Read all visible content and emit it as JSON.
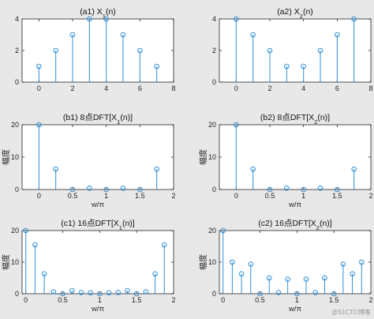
{
  "colors": {
    "stem": "#2f8fd8",
    "axes_bg": "#ffffff",
    "figure_bg": "#e8e8e8",
    "axis": "#262626"
  },
  "watermark": "@51CTO博客",
  "chart_data": [
    {
      "type": "stem",
      "title": "(a1)  X1(n)",
      "xlabel": "",
      "ylabel": "",
      "x": [
        0,
        1,
        2,
        3,
        4,
        5,
        6,
        7
      ],
      "values": [
        1,
        2,
        3,
        4,
        4,
        3,
        2,
        1
      ],
      "xlim": [
        -1,
        8
      ],
      "ylim": [
        0,
        4
      ],
      "xticks": [
        0,
        2,
        4,
        6,
        8
      ],
      "yticks": [
        0,
        2,
        4
      ],
      "grid": false
    },
    {
      "type": "stem",
      "title": "(a2)  X2(n)",
      "xlabel": "",
      "ylabel": "",
      "x": [
        0,
        1,
        2,
        3,
        4,
        5,
        6,
        7
      ],
      "values": [
        4,
        3,
        2,
        1,
        1,
        2,
        3,
        4
      ],
      "xlim": [
        -1,
        8
      ],
      "ylim": [
        0,
        4
      ],
      "xticks": [
        0,
        2,
        4,
        6,
        8
      ],
      "yticks": [
        0,
        2,
        4
      ],
      "grid": false
    },
    {
      "type": "stem",
      "title": "(b1)  8点DFT[X1(n)]",
      "xlabel": "w/π",
      "ylabel": "幅度",
      "x": [
        0,
        0.25,
        0.5,
        0.75,
        1,
        1.25,
        1.5,
        1.75
      ],
      "values": [
        20,
        6.3,
        0,
        0.4,
        0,
        0.4,
        0,
        6.3
      ],
      "xlim": [
        -0.25,
        2
      ],
      "ylim": [
        0,
        20
      ],
      "xticks": [
        0,
        0.5,
        1,
        1.5,
        2
      ],
      "yticks": [
        0,
        10,
        20
      ],
      "grid": false
    },
    {
      "type": "stem",
      "title": "(b2)  8点DFT[X2(n)]",
      "xlabel": "w/π",
      "ylabel": "幅度",
      "x": [
        0,
        0.25,
        0.5,
        0.75,
        1,
        1.25,
        1.5,
        1.75
      ],
      "values": [
        20,
        6.3,
        0,
        0.4,
        0,
        0.4,
        0,
        6.3
      ],
      "xlim": [
        -0.25,
        2
      ],
      "ylim": [
        0,
        20
      ],
      "xticks": [
        0,
        0.5,
        1,
        1.5,
        2
      ],
      "yticks": [
        0,
        10,
        20
      ],
      "grid": false
    },
    {
      "type": "stem",
      "title": "(c1)  16点DFT[X1(n)]",
      "xlabel": "w/π",
      "ylabel": "幅度",
      "x": [
        0,
        0.125,
        0.25,
        0.375,
        0.5,
        0.625,
        0.75,
        0.875,
        1,
        1.125,
        1.25,
        1.375,
        1.5,
        1.625,
        1.75,
        1.875
      ],
      "values": [
        20,
        15.5,
        6.3,
        0.6,
        0,
        1,
        0.4,
        0.3,
        0,
        0.3,
        0.4,
        1,
        0,
        0.6,
        6.3,
        15.5
      ],
      "xlim": [
        -0.05,
        2
      ],
      "ylim": [
        0,
        20
      ],
      "xticks": [
        0,
        0.5,
        1,
        1.5,
        2
      ],
      "yticks": [
        0,
        10,
        20
      ],
      "grid": false
    },
    {
      "type": "stem",
      "title": "(c2)  16点DFT[X2(n)]",
      "xlabel": "w/π",
      "ylabel": "幅度",
      "x": [
        0,
        0.125,
        0.25,
        0.375,
        0.5,
        0.625,
        0.75,
        0.875,
        1,
        1.125,
        1.25,
        1.375,
        1.5,
        1.625,
        1.75,
        1.875
      ],
      "values": [
        20,
        10,
        6.3,
        9.4,
        0,
        5,
        0.4,
        4.6,
        0,
        4.6,
        0.4,
        5,
        0,
        9.4,
        6.3,
        10
      ],
      "xlim": [
        -0.05,
        2
      ],
      "ylim": [
        0,
        20
      ],
      "xticks": [
        0,
        0.5,
        1,
        1.5,
        2
      ],
      "yticks": [
        0,
        10,
        20
      ],
      "grid": false
    }
  ]
}
